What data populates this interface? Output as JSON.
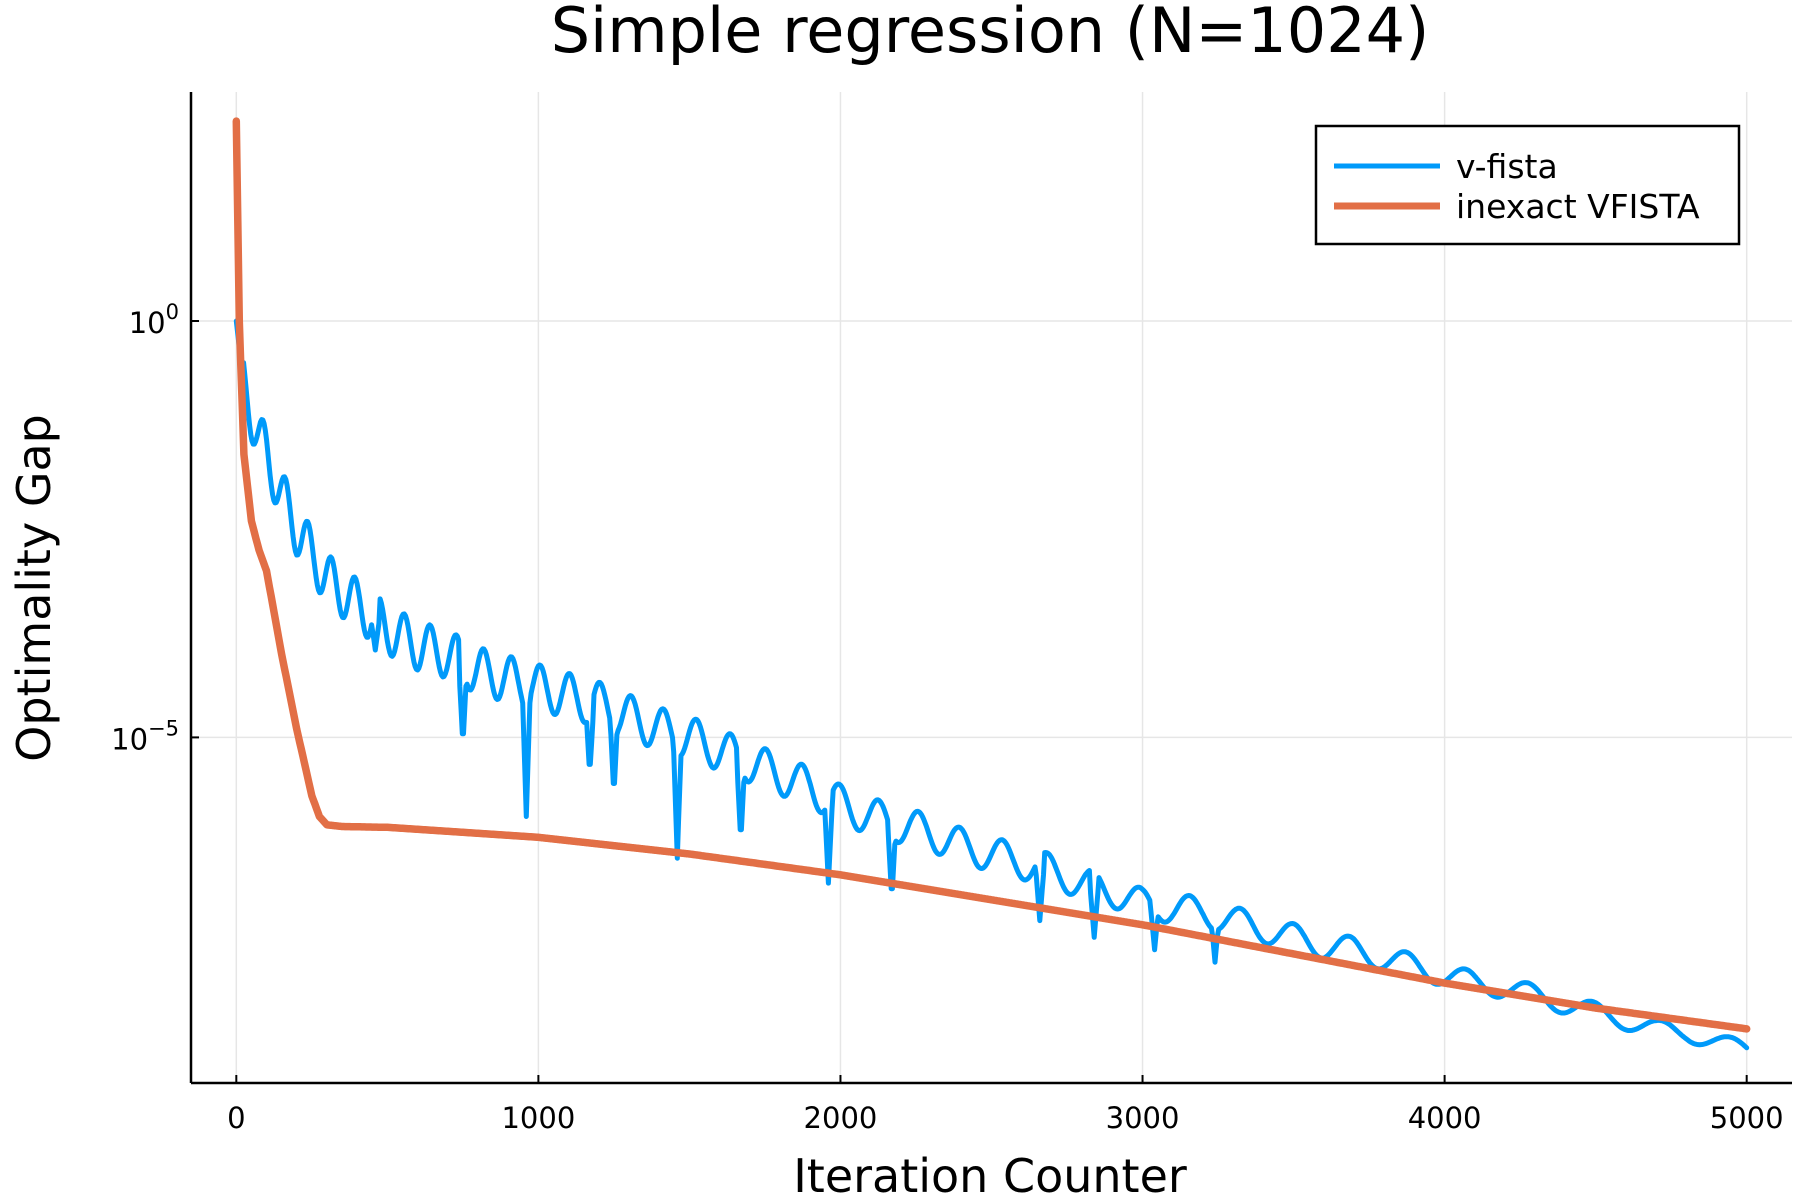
{
  "chart_data": {
    "type": "line",
    "title": "Simple regression (N=1024)",
    "xlabel": "Iteration Counter",
    "ylabel": "Optimality Gap",
    "x_ticks": [
      0,
      1000,
      2000,
      3000,
      4000,
      5000
    ],
    "y_ticks": [
      {
        "base": "10",
        "exponent": "0",
        "value": 1
      },
      {
        "base": "10",
        "exponent": "−5",
        "value": 1e-05
      }
    ],
    "xlim": [
      -150,
      5150
    ],
    "ylim_log10": [
      -9.15,
      2.75
    ],
    "y_scale": "log",
    "grid": true,
    "legend_position": "top-right",
    "series": [
      {
        "name": "v-fista",
        "color": "#009AFA",
        "x": [
          0,
          25,
          50,
          75,
          100,
          150,
          200,
          250,
          300,
          400,
          500,
          600,
          700,
          800,
          900,
          1000,
          1100,
          1200,
          1300,
          1400,
          1500,
          1600,
          1700,
          1800,
          1900,
          2000,
          2100,
          2200,
          2300,
          2400,
          2500,
          2600,
          2700,
          2800,
          2900,
          3000,
          3100,
          3200,
          3300,
          3400,
          3500,
          3600,
          3700,
          3800,
          3900,
          4000,
          4100,
          4200,
          4300,
          4400,
          4500,
          4600,
          4700,
          4800,
          4900,
          5000
        ],
        "log10_y": [
          0.0,
          -0.8,
          -1.1,
          -1.4,
          -1.6,
          -2.1,
          -2.5,
          -2.8,
          -3.1,
          -3.4,
          -3.7,
          -3.9,
          -4.0,
          -4.2,
          -4.3,
          -4.4,
          -4.5,
          -4.6,
          -4.75,
          -4.9,
          -5.0,
          -5.15,
          -5.3,
          -5.45,
          -5.6,
          -5.8,
          -5.95,
          -6.05,
          -6.15,
          -6.3,
          -6.4,
          -6.5,
          -6.6,
          -6.75,
          -6.85,
          -7.0,
          -7.05,
          -7.1,
          -7.2,
          -7.3,
          -7.4,
          -7.5,
          -7.55,
          -7.65,
          -7.75,
          -7.85,
          -7.95,
          -8.0,
          -8.1,
          -8.2,
          -8.3,
          -8.4,
          -8.5,
          -8.55,
          -8.65,
          -8.75
        ],
        "oscillation_dips": [
          {
            "x": 460,
            "log10_y": -3.95
          },
          {
            "x": 750,
            "log10_y": -5.1
          },
          {
            "x": 960,
            "log10_y": -5.95
          },
          {
            "x": 1170,
            "log10_y": -5.45
          },
          {
            "x": 1250,
            "log10_y": -5.7
          },
          {
            "x": 1460,
            "log10_y": -6.45
          },
          {
            "x": 1670,
            "log10_y": -6.25
          },
          {
            "x": 1960,
            "log10_y": -6.75
          },
          {
            "x": 2170,
            "log10_y": -6.95
          },
          {
            "x": 2660,
            "log10_y": -7.2
          },
          {
            "x": 2840,
            "log10_y": -7.4
          },
          {
            "x": 3040,
            "log10_y": -7.55
          },
          {
            "x": 3240,
            "log10_y": -7.7
          }
        ]
      },
      {
        "name": "inexact VFISTA",
        "color": "#E26F46",
        "x": [
          0,
          10,
          25,
          50,
          75,
          100,
          150,
          200,
          250,
          275,
          300,
          350,
          500,
          1000,
          1500,
          2000,
          2500,
          3000,
          3500,
          4000,
          4500,
          5000
        ],
        "log10_y": [
          2.4,
          0.0,
          -1.6,
          -2.4,
          -2.75,
          -3.0,
          -4.0,
          -4.9,
          -5.7,
          -5.95,
          -6.05,
          -6.07,
          -6.08,
          -6.2,
          -6.4,
          -6.65,
          -6.95,
          -7.25,
          -7.6,
          -7.95,
          -8.25,
          -8.5
        ]
      }
    ]
  }
}
